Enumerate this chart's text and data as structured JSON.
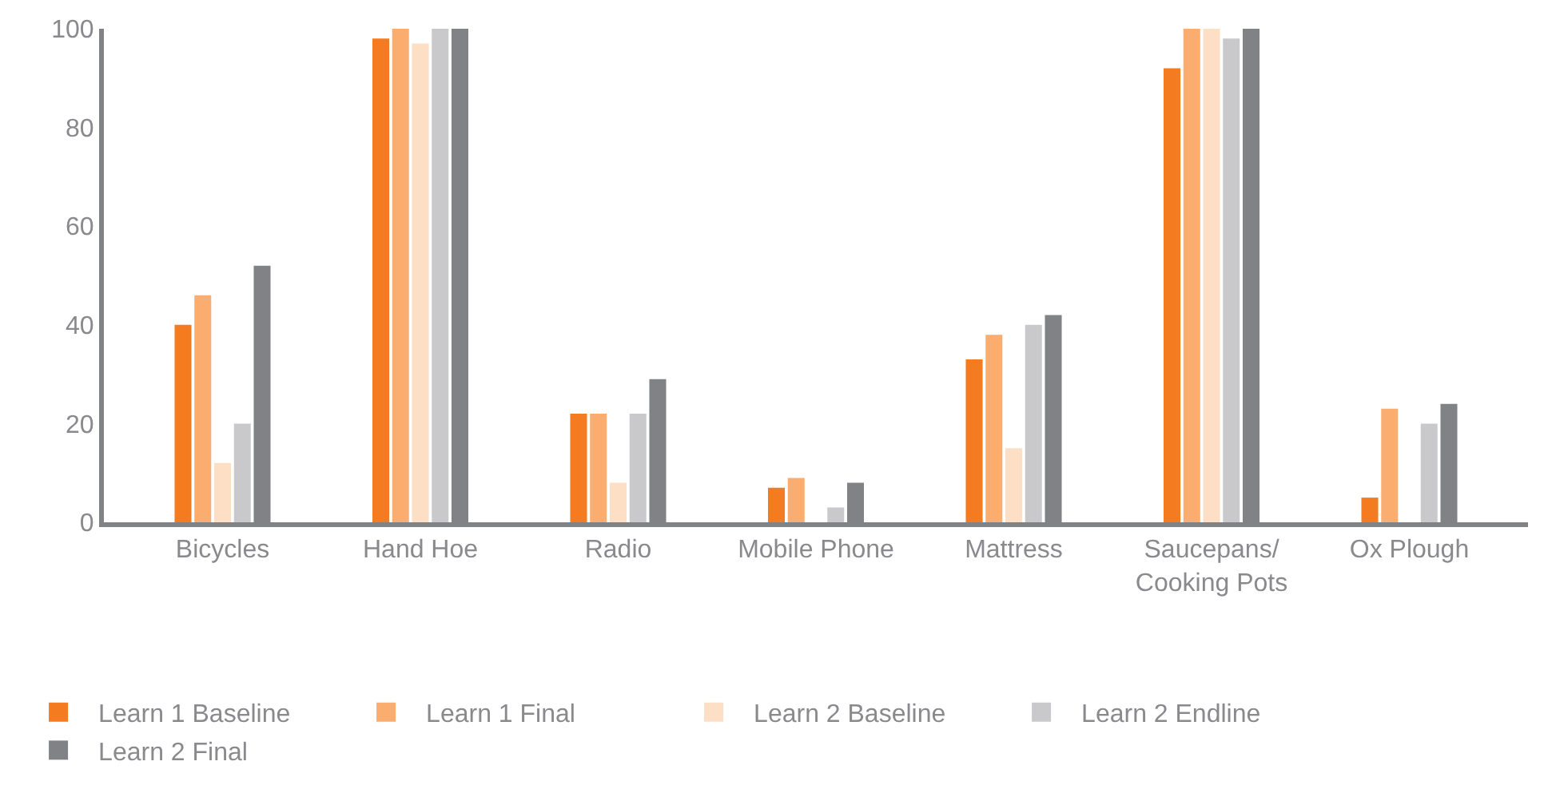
{
  "chart_data": {
    "type": "bar",
    "categories": [
      "Bicycles",
      "Hand Hoe",
      "Radio",
      "Mobile Phone",
      "Mattress",
      "Saucepans/\nCooking Pots",
      "Ox Plough"
    ],
    "series": [
      {
        "name": "Learn 1 Baseline",
        "color": "#f47b20",
        "values": [
          40,
          98,
          22,
          7,
          33,
          92,
          5
        ]
      },
      {
        "name": "Learn 1 Final",
        "color": "#fbac6f",
        "values": [
          46,
          100,
          22,
          9,
          38,
          100,
          23
        ]
      },
      {
        "name": "Learn 2 Baseline",
        "color": "#fddfc6",
        "values": [
          12,
          97,
          8,
          0,
          15,
          100,
          0
        ]
      },
      {
        "name": "Learn 2 Endline",
        "color": "#c9c9cb",
        "values": [
          20,
          100,
          22,
          3,
          40,
          98,
          20
        ]
      },
      {
        "name": "Learn 2 Final",
        "color": "#818286",
        "values": [
          52,
          100,
          29,
          8,
          42,
          100,
          24
        ]
      }
    ],
    "ylim": [
      0,
      100
    ],
    "yticks": [
      0,
      20,
      40,
      60,
      80,
      100
    ],
    "grid": false,
    "legend": "bottom"
  }
}
